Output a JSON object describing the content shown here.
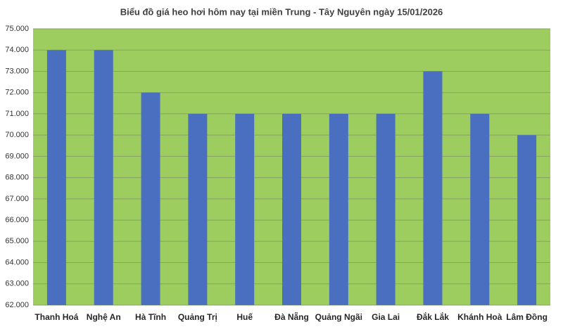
{
  "chart_data": {
    "type": "bar",
    "title": "Biểu đồ giá heo hơi hôm nay tại miền Trung - Tây Nguyên ngày 15/01/2026",
    "categories": [
      "Thanh Hoá",
      "Nghệ An",
      "Hà Tĩnh",
      "Quảng Trị",
      "Huế",
      "Đà Nẵng",
      "Quảng Ngãi",
      "Gia Lai",
      "Đắk Lắk",
      "Khánh Hoà",
      "Lâm Đồng"
    ],
    "values": [
      74000,
      74000,
      72000,
      71000,
      71000,
      71000,
      71000,
      71000,
      73000,
      71000,
      70000
    ],
    "color": "#4a6fc1",
    "plot_background": "#9dcc5f",
    "ylim": [
      62000,
      75000
    ],
    "yticks": [
      {
        "value": 62000,
        "label": "62.000"
      },
      {
        "value": 63000,
        "label": "63.000"
      },
      {
        "value": 64000,
        "label": "64.000"
      },
      {
        "value": 65000,
        "label": "65.000"
      },
      {
        "value": 66000,
        "label": "66.000"
      },
      {
        "value": 67000,
        "label": "67.000"
      },
      {
        "value": 68000,
        "label": "68.000"
      },
      {
        "value": 69000,
        "label": "69.000"
      },
      {
        "value": 70000,
        "label": "70.000"
      },
      {
        "value": 71000,
        "label": "71.000"
      },
      {
        "value": 72000,
        "label": "72.000"
      },
      {
        "value": 73000,
        "label": "73.000"
      },
      {
        "value": 74000,
        "label": "74.000"
      },
      {
        "value": 75000,
        "label": "75.000"
      }
    ],
    "grid": true
  }
}
